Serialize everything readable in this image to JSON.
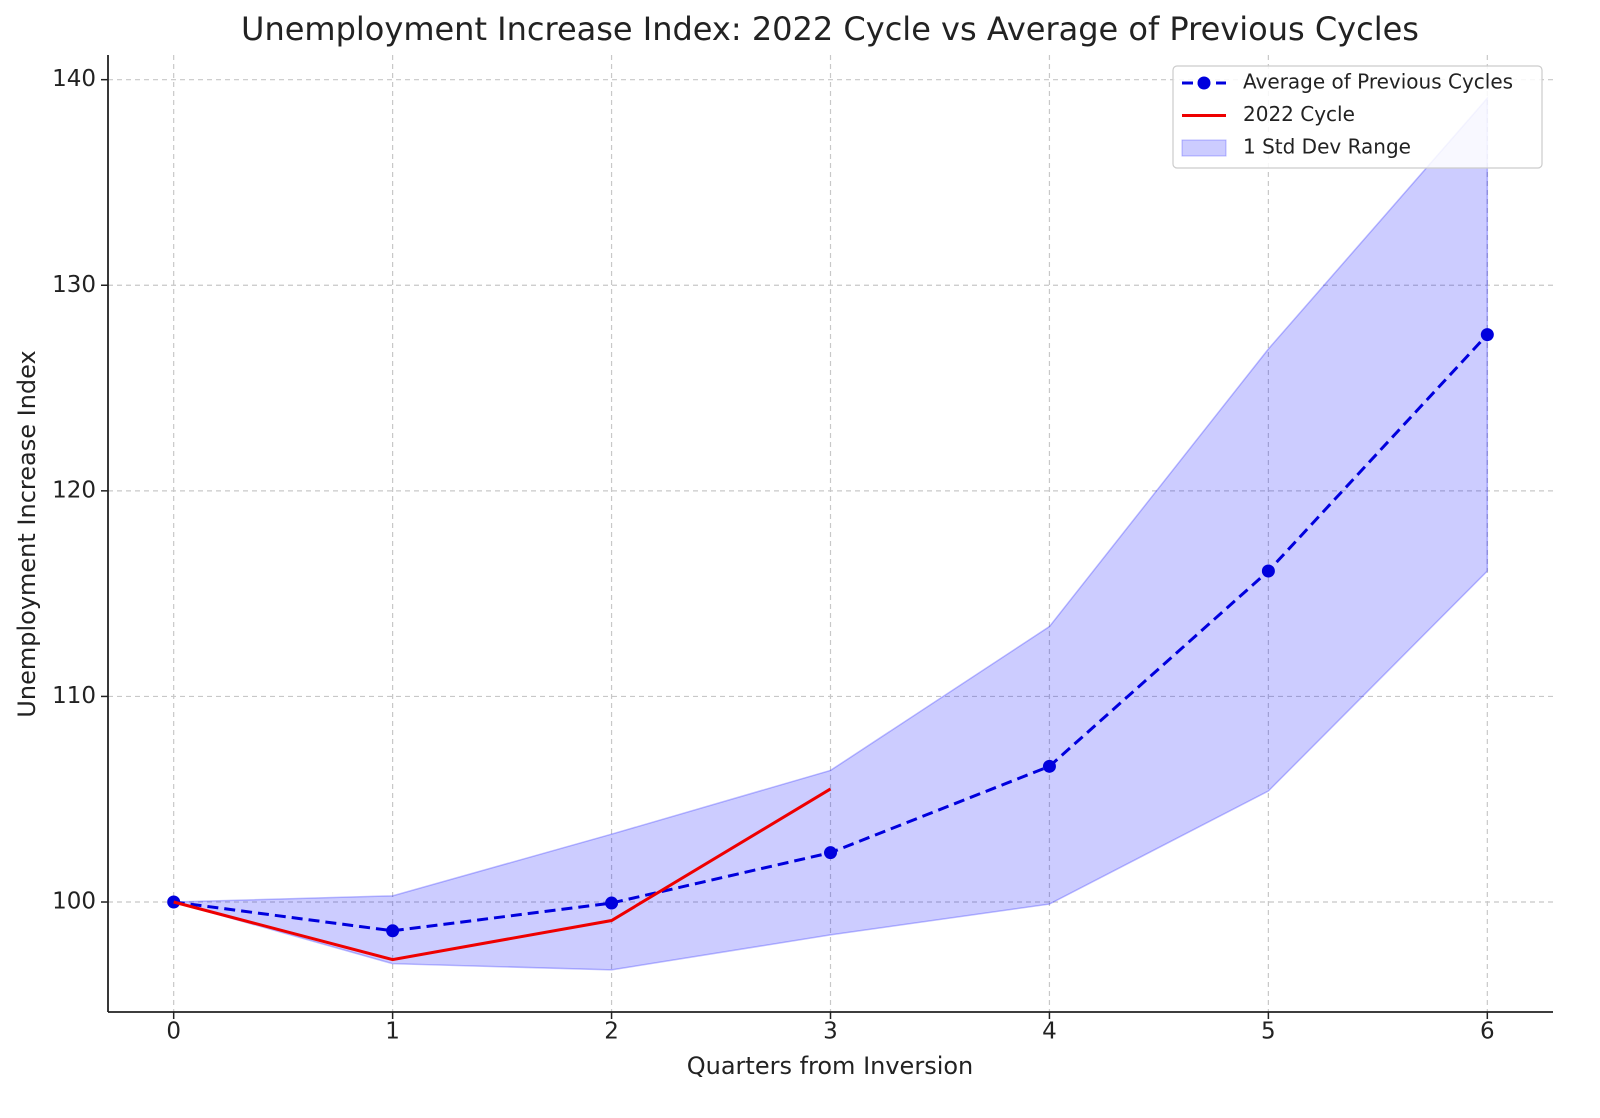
{
  "chart_data": {
    "type": "line",
    "title": "Unemployment Increase Index: 2022 Cycle vs Average of Previous Cycles",
    "x_label": "Quarters from Inversion",
    "y_label": "Unemployment Increase Index",
    "x": [
      0,
      1,
      2,
      3,
      4,
      5,
      6
    ],
    "xlim": [
      -0.3,
      6.3
    ],
    "xticks": [
      0,
      1,
      2,
      3,
      4,
      5,
      6
    ],
    "ylim": [
      94.65,
      141.2
    ],
    "yticks": [
      100,
      110,
      120,
      130,
      140
    ],
    "grid": true,
    "legend": "upper right",
    "series": [
      {
        "name": "Average of Previous Cycles",
        "color": "#0000dd",
        "style": "dashed",
        "markers": true,
        "values": [
          100,
          98.6,
          99.95,
          102.4,
          106.6,
          116.1,
          127.6
        ]
      },
      {
        "name": "2022 Cycle",
        "color": "#ee0000",
        "style": "solid",
        "markers": false,
        "values": [
          100,
          97.2,
          99.1,
          105.5,
          null,
          null,
          null
        ]
      },
      {
        "name": "1 Std Dev Range",
        "color": "#0000ff",
        "band": true,
        "upper": [
          100,
          100.3,
          103.3,
          106.4,
          113.4,
          126.9,
          139.1
        ],
        "lower": [
          100,
          97.0,
          96.7,
          98.4,
          99.9,
          105.4,
          116.1
        ]
      }
    ]
  }
}
